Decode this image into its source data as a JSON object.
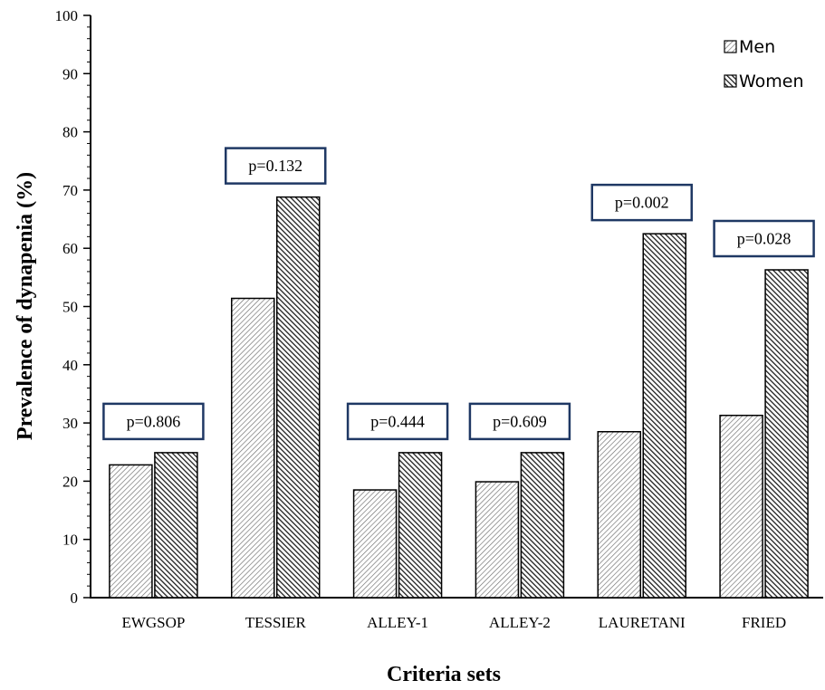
{
  "chart_data": {
    "type": "bar",
    "title": "",
    "xlabel": "Criteria sets",
    "ylabel": "Prevalence of dynapenia (%)",
    "ylim": [
      0,
      100
    ],
    "yticks": [
      0,
      10,
      20,
      30,
      40,
      50,
      60,
      70,
      80,
      90,
      100
    ],
    "grid": false,
    "legend_position": "top-right",
    "categories": [
      "EWGSOP",
      "TESSIER",
      "ALLEY-1",
      "ALLEY-2",
      "LAURETANI",
      "FRIED"
    ],
    "series": [
      {
        "name": "Men",
        "values": [
          22.8,
          51.4,
          18.5,
          19.9,
          28.5,
          31.3
        ],
        "pattern": "light-hatch"
      },
      {
        "name": "Women",
        "values": [
          24.9,
          68.8,
          24.9,
          24.9,
          62.5,
          56.3
        ],
        "pattern": "dark-hatch"
      }
    ],
    "annotations": [
      "p=0.806",
      "p=0.132",
      "p=0.444",
      "p=0.609",
      "p=0.002",
      "p=0.028"
    ],
    "colors": {
      "box_border": "#1f3864",
      "bar_border": "#000000"
    }
  }
}
